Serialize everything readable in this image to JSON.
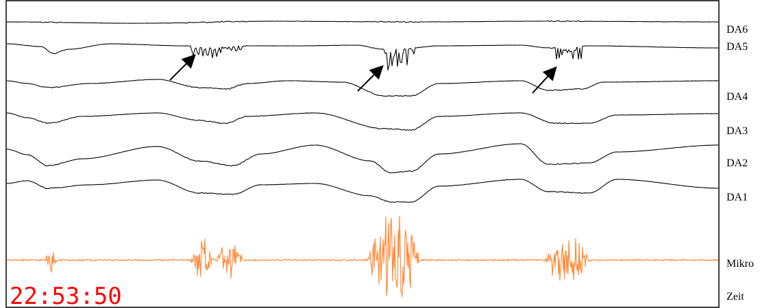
{
  "chart_data": {
    "type": "line",
    "title": "",
    "xlabel": "",
    "ylabel": "",
    "grid": false,
    "timestamp": "22:53:50",
    "channels": [
      {
        "label": "DA6"
      },
      {
        "label": "DA5"
      },
      {
        "label": "DA4"
      },
      {
        "label": "DA3"
      },
      {
        "label": "DA2"
      },
      {
        "label": "DA1"
      },
      {
        "label": "Mikro"
      },
      {
        "label": "Zeit"
      }
    ],
    "colors": {
      "traces": "#000000",
      "microphone": "#ff8c3c",
      "timestamp": "#ff0000",
      "frame": "#000000"
    },
    "annotations": [
      {
        "type": "arrow",
        "channel": "DA5",
        "burst": 1
      },
      {
        "type": "arrow",
        "channel": "DA5",
        "burst": 2
      },
      {
        "type": "arrow",
        "channel": "DA5",
        "burst": 3
      }
    ]
  }
}
